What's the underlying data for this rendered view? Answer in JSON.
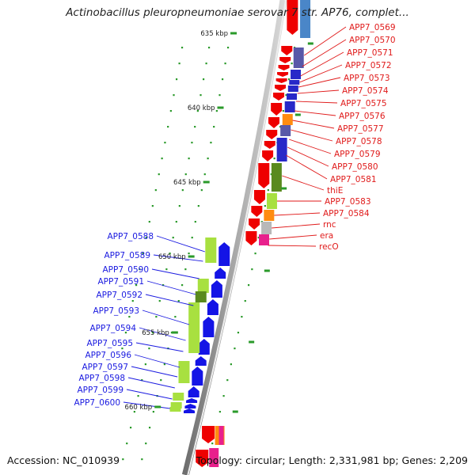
{
  "title": "Actinobacillus pleuropneumoniae serovar 7 str. AP76, complet...",
  "accession": "Accession: NC_010939",
  "topology": "Topology: circular; Length: 2,331,981 bp; Genes: 2,209",
  "colors": {
    "forward_cds": "#ee0000",
    "reverse_cds": "#1414e6",
    "rna_or_other": "#a8e040",
    "dark_green": "#5a8a1e",
    "navy_block": "#2828c8",
    "slate_block": "#5858a8",
    "steel_block": "#4a86c8",
    "orange_block": "#ff8c10",
    "gray_block": "#b8b8b8",
    "pink_block": "#e8208c",
    "backbone": "#8a8a8a",
    "tick": "#2a9a2a",
    "blue_label": "#1a1ae0",
    "red_label": "#e01a1a"
  },
  "scale_labels": [
    "635 kbp",
    "640 kbp",
    "645 kbp",
    "650 kbp",
    "655 kbp",
    "660 kbp"
  ],
  "right_genes": [
    "APP7_0569",
    "APP7_0570",
    "APP7_0571",
    "APP7_0572",
    "APP7_0573",
    "APP7_0574",
    "APP7_0575",
    "APP7_0576",
    "APP7_0577",
    "APP7_0578",
    "APP7_0579",
    "APP7_0580",
    "APP7_0581",
    "thiE",
    "APP7_0583",
    "APP7_0584",
    "rnc",
    "era",
    "recO"
  ],
  "left_genes": [
    "APP7_0588",
    "APP7_0589",
    "APP7_0590",
    "APP7_0591",
    "APP7_0592",
    "APP7_0593",
    "APP7_0594",
    "APP7_0595",
    "APP7_0596",
    "APP7_0597",
    "APP7_0598",
    "APP7_0599",
    "APP7_0600"
  ]
}
